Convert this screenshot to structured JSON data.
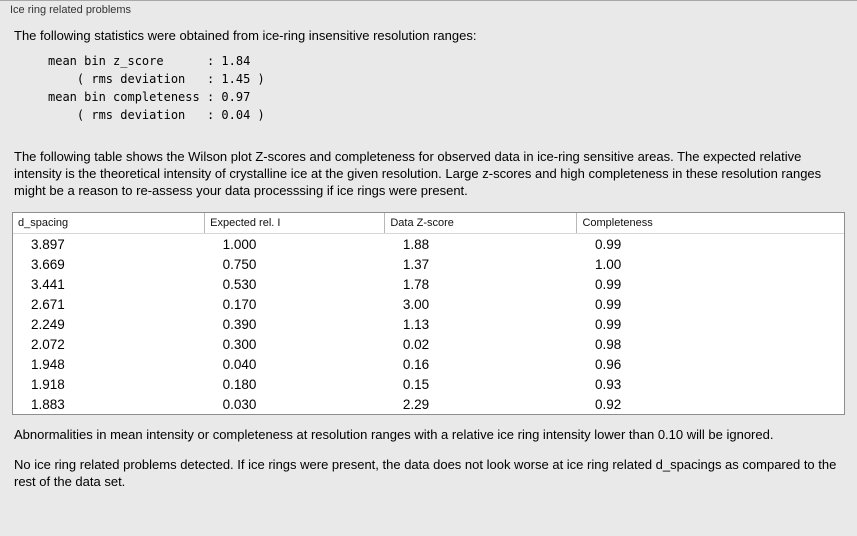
{
  "panel": {
    "title": "Ice ring related problems"
  },
  "intro": "The following statistics were obtained from ice-ring insensitive resolution ranges:",
  "stats": {
    "lines": [
      "mean bin z_score      : 1.84",
      "    ( rms deviation   : 1.45 )",
      "mean bin completeness : 0.97",
      "    ( rms deviation   : 0.04 )"
    ]
  },
  "description": "The following table shows the Wilson plot Z-scores and completeness for observed data in ice-ring sensitive areas. The expected relative intensity is the theoretical intensity of crystalline ice at the given resolution. Large z-scores and high completeness in these resolution ranges might be a reason to re-assess your data processsing if ice rings were present.",
  "table": {
    "headers": [
      "d_spacing",
      "Expected rel. I",
      "Data Z-score",
      "Completeness"
    ],
    "rows": [
      [
        "3.897",
        "1.000",
        "1.88",
        "0.99"
      ],
      [
        "3.669",
        "0.750",
        "1.37",
        "1.00"
      ],
      [
        "3.441",
        "0.530",
        "1.78",
        "0.99"
      ],
      [
        "2.671",
        "0.170",
        "3.00",
        "0.99"
      ],
      [
        "2.249",
        "0.390",
        "1.13",
        "0.99"
      ],
      [
        "2.072",
        "0.300",
        "0.02",
        "0.98"
      ],
      [
        "1.948",
        "0.040",
        "0.16",
        "0.96"
      ],
      [
        "1.918",
        "0.180",
        "0.15",
        "0.93"
      ],
      [
        "1.883",
        "0.030",
        "2.29",
        "0.92"
      ]
    ]
  },
  "note_ignore": "Abnormalities in mean intensity or completeness at resolution ranges with a relative ice ring intensity lower than 0.10 will be ignored.",
  "conclusion": "No ice ring related problems detected. If ice rings were present, the data does not look worse at ice ring related d_spacings as compared to the rest of the data set."
}
